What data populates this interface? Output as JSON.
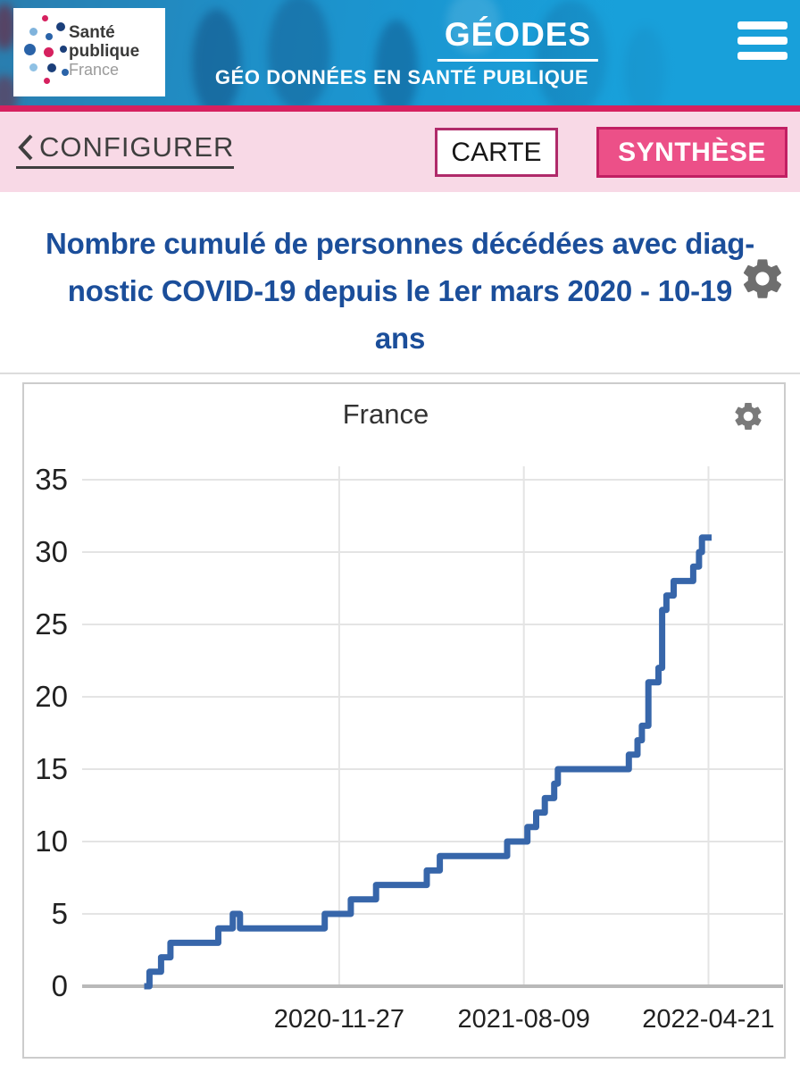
{
  "header": {
    "logo": {
      "line1": "Santé",
      "line2": "publique",
      "line3": "France"
    },
    "app_title": "GÉODES",
    "app_subtitle": "GÉO DONNÉES EN SANTÉ PUBLIQUE"
  },
  "toolbar": {
    "configure_label": "CONFIGURER",
    "carte_label": "CARTE",
    "synthese_label": "SYNTHÈSE"
  },
  "page": {
    "title_lines": [
      "Nombre cumulé de personnes décédées avec diag-",
      "nostic COVID-19 depuis le 1er mars 2020 - 10-19",
      "ans"
    ],
    "title_full": "Nombre cumulé de personnes décédées avec diagnostic COVID-19 depuis le 1er mars 2020 - 10-19 ans"
  },
  "colors": {
    "header_blue": "#1a9ad7",
    "accent_crimson": "#d6215f",
    "toolbar_pink": "#f8d9e6",
    "synthese_button_pink": "#ec5088",
    "button_border_pink": "#c11f63",
    "carte_border_pink": "#b02a6a",
    "title_blue": "#1b4e9a",
    "series_blue": "#3766aa"
  },
  "icons": {
    "menu": "hamburger-icon",
    "settings": "gear-icon",
    "back": "chevron-left-icon"
  },
  "chart_data": {
    "type": "line",
    "step": true,
    "title": "France",
    "xlabel": "",
    "ylabel": "",
    "legend": "none",
    "grid": true,
    "y_ticks": [
      0,
      5,
      10,
      15,
      20,
      25,
      30,
      35
    ],
    "y_range": [
      0,
      36
    ],
    "x_ticks": [
      "2020-11-27",
      "2021-08-09",
      "2022-04-21"
    ],
    "x_range": [
      "2019-12-08",
      "2022-08-02"
    ],
    "series": [
      {
        "name": "France",
        "color": "#3766aa",
        "end": "2022-04-21",
        "points": [
          [
            "2020-03-07",
            0
          ],
          [
            "2020-03-10",
            1
          ],
          [
            "2020-03-26",
            2
          ],
          [
            "2020-04-08",
            3
          ],
          [
            "2020-06-13",
            4
          ],
          [
            "2020-07-03",
            5
          ],
          [
            "2020-07-13",
            4
          ],
          [
            "2020-11-07",
            5
          ],
          [
            "2020-12-13",
            6
          ],
          [
            "2021-01-17",
            7
          ],
          [
            "2021-03-28",
            8
          ],
          [
            "2021-04-15",
            9
          ],
          [
            "2021-07-17",
            10
          ],
          [
            "2021-08-14",
            11
          ],
          [
            "2021-08-26",
            12
          ],
          [
            "2021-09-07",
            13
          ],
          [
            "2021-09-20",
            14
          ],
          [
            "2021-09-25",
            15
          ],
          [
            "2022-01-01",
            16
          ],
          [
            "2022-01-13",
            17
          ],
          [
            "2022-01-19",
            18
          ],
          [
            "2022-01-28",
            21
          ],
          [
            "2022-02-11",
            22
          ],
          [
            "2022-02-16",
            26
          ],
          [
            "2022-02-22",
            27
          ],
          [
            "2022-03-04",
            28
          ],
          [
            "2022-03-31",
            29
          ],
          [
            "2022-04-08",
            30
          ],
          [
            "2022-04-12",
            31
          ]
        ]
      }
    ]
  }
}
